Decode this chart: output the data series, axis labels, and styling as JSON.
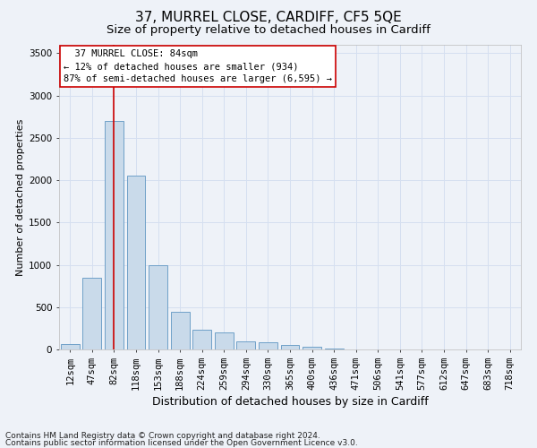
{
  "title1": "37, MURREL CLOSE, CARDIFF, CF5 5QE",
  "title2": "Size of property relative to detached houses in Cardiff",
  "xlabel": "Distribution of detached houses by size in Cardiff",
  "ylabel": "Number of detached properties",
  "footnote1": "Contains HM Land Registry data © Crown copyright and database right 2024.",
  "footnote2": "Contains public sector information licensed under the Open Government Licence v3.0.",
  "categories": [
    "12sqm",
    "47sqm",
    "82sqm",
    "118sqm",
    "153sqm",
    "188sqm",
    "224sqm",
    "259sqm",
    "294sqm",
    "330sqm",
    "365sqm",
    "400sqm",
    "436sqm",
    "471sqm",
    "506sqm",
    "541sqm",
    "577sqm",
    "612sqm",
    "647sqm",
    "683sqm",
    "718sqm"
  ],
  "values": [
    60,
    850,
    2700,
    2050,
    1000,
    450,
    230,
    200,
    100,
    80,
    50,
    30,
    10,
    5,
    3,
    1,
    0,
    0,
    0,
    0,
    0
  ],
  "bar_color": "#c9daea",
  "bar_edge_color": "#6fa0c8",
  "grid_color": "#d5dff0",
  "annotation_text": "  37 MURREL CLOSE: 84sqm  \n← 12% of detached houses are smaller (934)\n87% of semi-detached houses are larger (6,595) →",
  "annotation_box_color": "#ffffff",
  "annotation_border_color": "#cc0000",
  "vline_color": "#cc0000",
  "vline_x": 2.0,
  "ylim": [
    0,
    3600
  ],
  "yticks": [
    0,
    500,
    1000,
    1500,
    2000,
    2500,
    3000,
    3500
  ],
  "title1_fontsize": 11,
  "title2_fontsize": 9.5,
  "xlabel_fontsize": 9,
  "ylabel_fontsize": 8,
  "tick_fontsize": 7.5,
  "annotation_fontsize": 7.5,
  "footnote_fontsize": 6.5,
  "background_color": "#eef2f8"
}
